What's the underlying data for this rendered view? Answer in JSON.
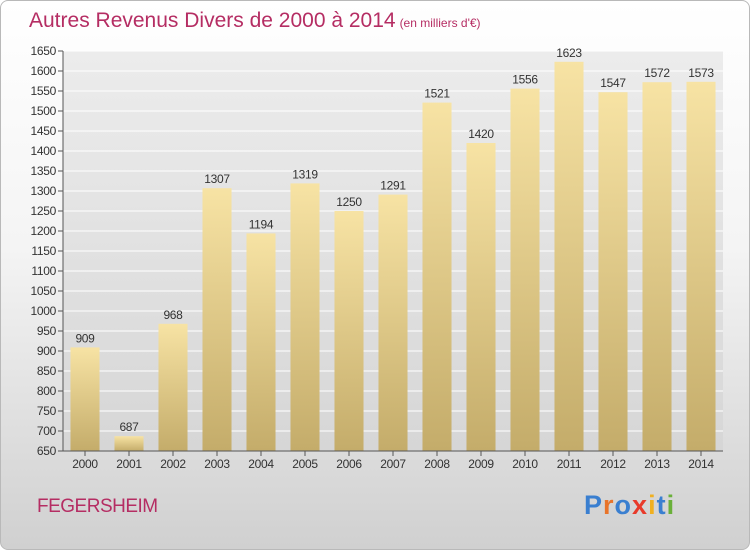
{
  "title": "Autres Revenus Divers de 2000 à 2014",
  "subtitle": "(en milliers d'€)",
  "town": "FEGERSHEIM",
  "brand": {
    "letters": [
      "P",
      "r",
      "o",
      "x",
      "i",
      "t",
      "i"
    ],
    "colors": [
      "#3a7fd0",
      "#e8742a",
      "#3a7fd0",
      "#e83a2a",
      "#f0b020",
      "#3a7fd0",
      "#6ab03a"
    ]
  },
  "colors": {
    "accent": "#b52d63",
    "bar_light": "#f7e3a4",
    "bar_dark": "#c4ac6a",
    "grid": "#ffffff"
  },
  "chart_data": {
    "type": "bar",
    "categories": [
      "2000",
      "2001",
      "2002",
      "2003",
      "2004",
      "2005",
      "2006",
      "2007",
      "2008",
      "2009",
      "2010",
      "2011",
      "2012",
      "2013",
      "2014"
    ],
    "values": [
      909,
      687,
      968,
      1307,
      1194,
      1319,
      1250,
      1291,
      1521,
      1420,
      1556,
      1623,
      1547,
      1572,
      1573
    ],
    "title": "Autres Revenus Divers de 2000 à 2014",
    "xlabel": "",
    "ylabel": "",
    "ylim": [
      650,
      1650
    ],
    "yticks": [
      650,
      700,
      750,
      800,
      850,
      900,
      950,
      1000,
      1050,
      1100,
      1150,
      1200,
      1250,
      1300,
      1350,
      1400,
      1450,
      1500,
      1550,
      1600,
      1650
    ],
    "grid": true,
    "data_labels": true
  }
}
